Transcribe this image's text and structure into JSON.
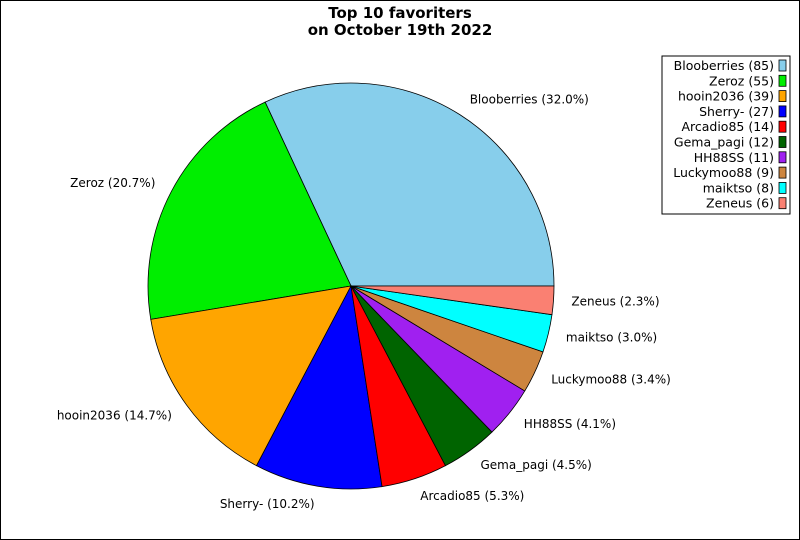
{
  "chart_data": {
    "type": "pie",
    "title_lines": [
      "Top 10 favoriters",
      "on October 19th 2022"
    ],
    "slices": [
      {
        "name": "Blooberries",
        "value": 85,
        "label": "Blooberries (32.0%)",
        "legend": "Blooberries (85)",
        "color": "#87ceeb"
      },
      {
        "name": "Zeroz",
        "value": 55,
        "label": "Zeroz (20.7%)",
        "legend": "Zeroz (55)",
        "color": "#00ee00"
      },
      {
        "name": "hooin2036",
        "value": 39,
        "label": "hooin2036 (14.7%)",
        "legend": "hooin2036 (39)",
        "color": "#ffa500"
      },
      {
        "name": "Sherry-",
        "value": 27,
        "label": "Sherry- (10.2%)",
        "legend": "Sherry- (27)",
        "color": "#0000ff"
      },
      {
        "name": "Arcadio85",
        "value": 14,
        "label": "Arcadio85 (5.3%)",
        "legend": "Arcadio85 (14)",
        "color": "#ff0000"
      },
      {
        "name": "Gema_pagi",
        "value": 12,
        "label": "Gema_pagi (4.5%)",
        "legend": "Gema_pagi (12)",
        "color": "#006400"
      },
      {
        "name": "HH88SS",
        "value": 11,
        "label": "HH88SS (4.1%)",
        "legend": "HH88SS (11)",
        "color": "#a020f0"
      },
      {
        "name": "Luckymoo88",
        "value": 9,
        "label": "Luckymoo88 (3.4%)",
        "legend": "Luckymoo88 (9)",
        "color": "#cd853f"
      },
      {
        "name": "maiktso",
        "value": 8,
        "label": "maiktso (3.0%)",
        "legend": "maiktso (8)",
        "color": "#00ffff"
      },
      {
        "name": "Zeneus",
        "value": 6,
        "label": "Zeneus (2.3%)",
        "legend": "Zeneus (6)",
        "color": "#fa8072"
      }
    ],
    "start_angle_deg": 0,
    "direction": "counterclockwise",
    "legend_position": "top-right"
  }
}
